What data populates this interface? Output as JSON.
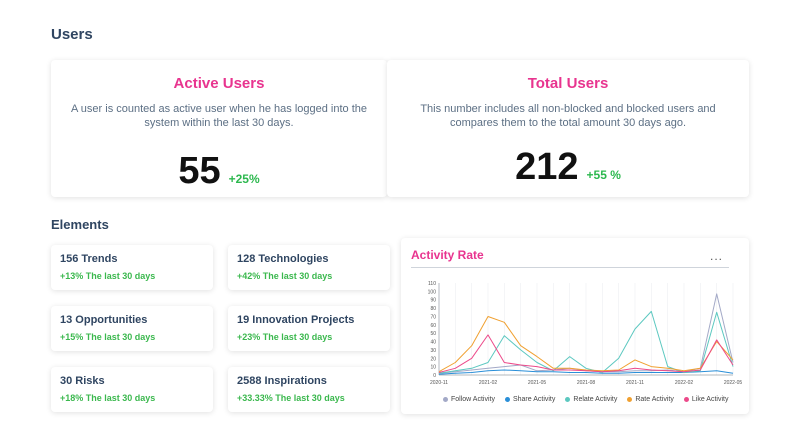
{
  "users_section": {
    "title": "Users",
    "active": {
      "title": "Active Users",
      "description": "A user is counted as active user when he has logged into the system within the last 30 days.",
      "value": "55",
      "change": "+25%"
    },
    "total": {
      "title": "Total Users",
      "description": "This number includes all non-blocked and blocked users and compares them to the total amount 30 days ago.",
      "value": "212",
      "change": "+55 %"
    }
  },
  "elements_section": {
    "title": "Elements",
    "cards": [
      {
        "title": "156 Trends",
        "subtitle": "+13% The last 30 days"
      },
      {
        "title": "128 Technologies",
        "subtitle": "+42% The last 30 days"
      },
      {
        "title": "13 Opportunities",
        "subtitle": "+15% The last 30 days"
      },
      {
        "title": "19 Innovation Projects",
        "subtitle": "+23% The last 30 days"
      },
      {
        "title": "30 Risks",
        "subtitle": "+18% The last 30 days"
      },
      {
        "title": "2588 Inspirations",
        "subtitle": "+33.33% The last 30 days"
      }
    ]
  },
  "activity": {
    "title": "Activity Rate",
    "menu_icon": "more-horizontal-icon",
    "menu_label": "..."
  },
  "colors": {
    "accent_pink": "#e8348f",
    "positive_green": "#2cb84e",
    "heading_navy": "#2f4561"
  },
  "chart_data": {
    "type": "line",
    "x": [
      "2020-11",
      "2020-12",
      "2021-01",
      "2021-02",
      "2021-03",
      "2021-04",
      "2021-05",
      "2021-06",
      "2021-07",
      "2021-08",
      "2021-09",
      "2021-10",
      "2021-11",
      "2021-12",
      "2022-01",
      "2022-02",
      "2022-03",
      "2022-04",
      "2022-05"
    ],
    "x_tick_labels": [
      "2020-11",
      "2021-02",
      "2021-05",
      "2021-08",
      "2021-11",
      "2022-02",
      "2022-05"
    ],
    "y_ticks": [
      0,
      10,
      20,
      30,
      40,
      50,
      60,
      70,
      80,
      90,
      100,
      110
    ],
    "ylim": [
      0,
      110
    ],
    "grid": "vertical",
    "legend_position": "bottom",
    "series": [
      {
        "name": "Follow Activity",
        "color": "#a3a9c7",
        "values": [
          2,
          4,
          6,
          8,
          10,
          12,
          5,
          6,
          8,
          5,
          4,
          4,
          5,
          5,
          6,
          4,
          8,
          97,
          15
        ]
      },
      {
        "name": "Share Activity",
        "color": "#2a8fd8",
        "values": [
          1,
          2,
          3,
          5,
          6,
          5,
          4,
          4,
          3,
          3,
          2,
          2,
          3,
          3,
          3,
          3,
          4,
          5,
          2
        ]
      },
      {
        "name": "Relate Activity",
        "color": "#5cc8c0",
        "values": [
          2,
          5,
          8,
          15,
          47,
          30,
          15,
          5,
          22,
          8,
          3,
          20,
          55,
          76,
          10,
          3,
          5,
          75,
          10
        ]
      },
      {
        "name": "Rate Activity",
        "color": "#f0a030",
        "values": [
          4,
          15,
          35,
          70,
          63,
          35,
          22,
          8,
          8,
          6,
          5,
          6,
          18,
          10,
          8,
          5,
          8,
          40,
          18
        ]
      },
      {
        "name": "Like Activity",
        "color": "#ec4a8a",
        "values": [
          3,
          8,
          20,
          48,
          15,
          12,
          10,
          6,
          6,
          5,
          4,
          5,
          8,
          6,
          5,
          4,
          6,
          42,
          12
        ]
      }
    ]
  }
}
